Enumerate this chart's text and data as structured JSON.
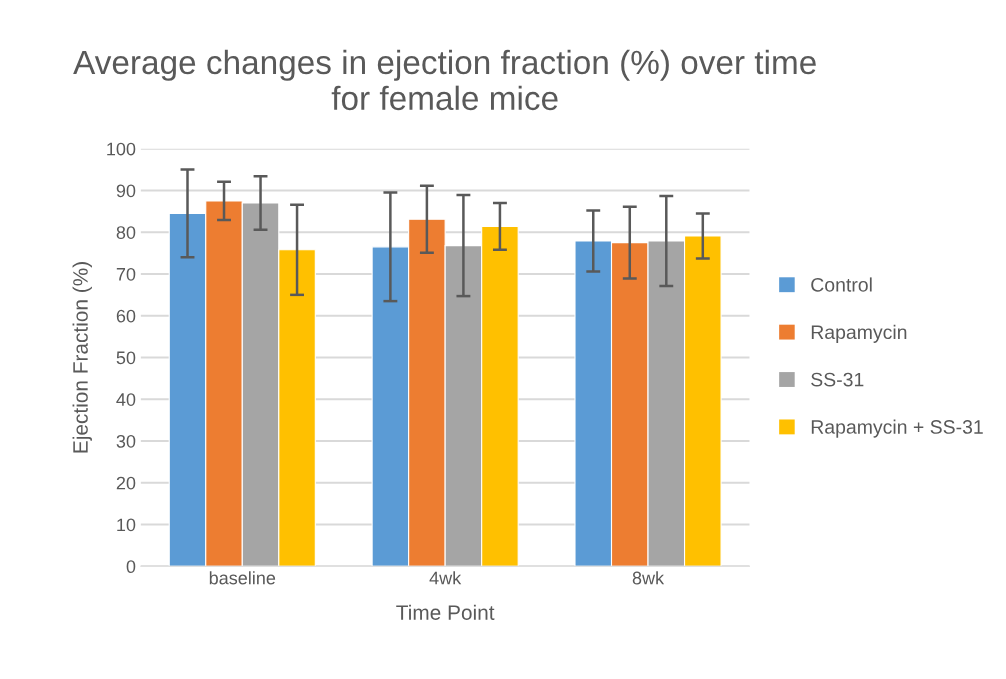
{
  "chart_data": {
    "type": "bar",
    "title": "Average changes in ejection fraction (%) over time\nfor female mice",
    "xlabel": "Time Point",
    "ylabel": "Ejection Fraction (%)",
    "categories": [
      "baseline",
      "4wk",
      "8wk"
    ],
    "series": [
      {
        "name": "Control",
        "color": "#5b9bd5",
        "values": [
          84.5,
          76.5,
          77.9
        ],
        "errors": [
          10.5,
          13,
          7.3
        ]
      },
      {
        "name": "Rapamycin",
        "color": "#ed7d31",
        "values": [
          87.5,
          83.1,
          77.5
        ],
        "errors": [
          4.6,
          8,
          8.6
        ]
      },
      {
        "name": "SS-31",
        "color": "#a5a5a5",
        "values": [
          87.0,
          76.8,
          77.9
        ],
        "errors": [
          6.4,
          12.1,
          10.8
        ]
      },
      {
        "name": "Rapamycin + SS-31",
        "color": "#ffc000",
        "values": [
          75.8,
          81.4,
          79.1
        ],
        "errors": [
          10.8,
          5.6,
          5.4
        ]
      }
    ],
    "ylim": [
      0,
      100
    ],
    "yticks": [
      0,
      10,
      20,
      30,
      40,
      50,
      60,
      70,
      80,
      90,
      100
    ],
    "grid": "y",
    "legend": "right"
  }
}
